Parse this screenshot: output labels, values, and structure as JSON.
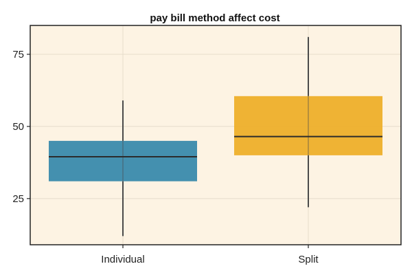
{
  "chart_data": {
    "type": "box",
    "title": "pay bill method  affect  cost",
    "xlabel": "",
    "ylabel": "",
    "categories": [
      "Individual",
      "Split"
    ],
    "ylim": [
      9,
      85
    ],
    "yticks": [
      25,
      50,
      75
    ],
    "grid": true,
    "colors": {
      "plot_background": "#fdf3e3",
      "grid": "#e6dccb",
      "frame": "#222222",
      "median": "#2b2b2b"
    },
    "series": [
      {
        "category": "Individual",
        "min": 12,
        "q1": 31,
        "median": 39.5,
        "q3": 45,
        "max": 59,
        "color": "#3a8aac"
      },
      {
        "category": "Split",
        "min": 22,
        "q1": 40,
        "median": 46.5,
        "q3": 60.5,
        "max": 81,
        "color": "#eeaf2a"
      }
    ]
  }
}
